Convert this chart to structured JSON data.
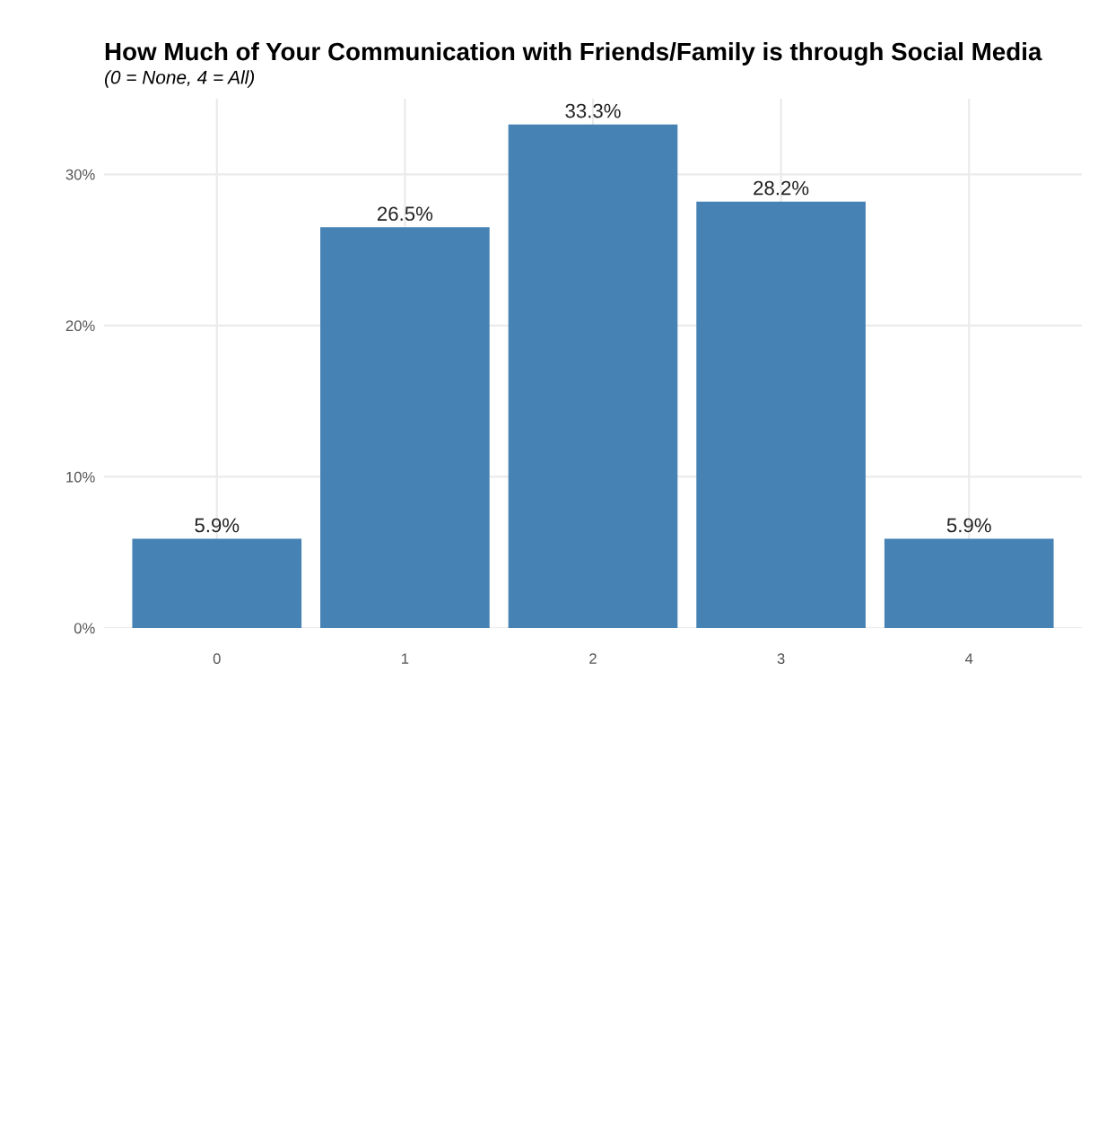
{
  "chart_data": {
    "type": "bar",
    "title": "How Much of Your Communication with Friends/Family is through Social Media",
    "subtitle": "(0 = None, 4 = All)",
    "categories": [
      "0",
      "1",
      "2",
      "3",
      "4"
    ],
    "values": [
      5.9,
      26.5,
      33.3,
      28.2,
      5.9
    ],
    "value_labels": [
      "5.9%",
      "26.5%",
      "33.3%",
      "28.2%",
      "5.9%"
    ],
    "color": "#4682b4",
    "ylim": [
      0,
      35
    ],
    "yticks": [
      {
        "value": 0,
        "label": "0%"
      },
      {
        "value": 10,
        "label": "10%"
      },
      {
        "value": 20,
        "label": "20%"
      },
      {
        "value": 30,
        "label": "30%"
      }
    ],
    "grid": true
  }
}
